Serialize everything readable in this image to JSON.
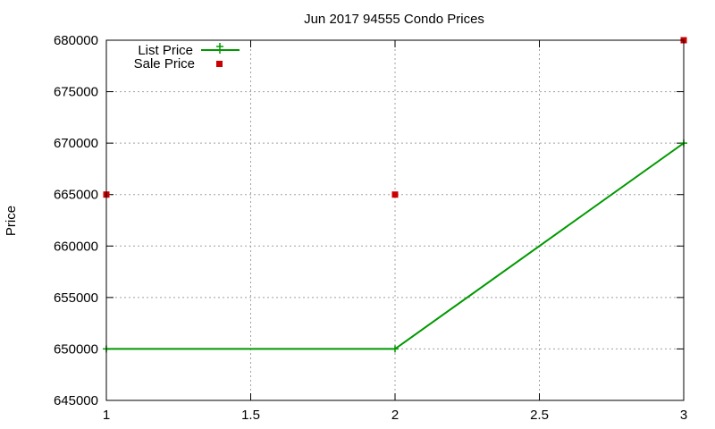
{
  "chart_data": {
    "type": "line",
    "title": "Jun 2017 94555 Condo Prices",
    "xlabel": "",
    "ylabel": "Price",
    "xlim": [
      1,
      3
    ],
    "ylim": [
      645000,
      680000
    ],
    "xticks": [
      "1",
      "1.5",
      "2",
      "2.5",
      "3"
    ],
    "yticks": [
      "645000",
      "650000",
      "655000",
      "660000",
      "665000",
      "670000",
      "675000",
      "680000"
    ],
    "grid": true,
    "legend_position": "top-left",
    "series": [
      {
        "name": "List Price",
        "style": "line-with-plus-markers",
        "color": "#009900",
        "x": [
          1,
          2,
          3
        ],
        "y": [
          650000,
          650000,
          670000
        ]
      },
      {
        "name": "Sale Price",
        "style": "square-markers",
        "color": "#cc0000",
        "x": [
          1,
          2,
          3
        ],
        "y": [
          665000,
          665000,
          680000
        ]
      }
    ]
  }
}
